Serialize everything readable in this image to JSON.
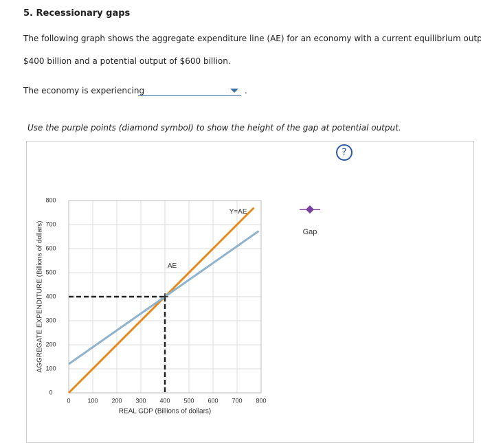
{
  "header": {
    "title": "5. Recessionary gaps"
  },
  "intro": [
    "The following graph shows the aggregate expenditure line (AE) for an economy with a current equilibrium output of",
    "$400 billion and a potential output of $600 billion."
  ],
  "question": {
    "prompt": "The economy is experiencing",
    "end": "."
  },
  "instruction": "Use the purple points (diamond symbol) to show the height of the gap at potential output.",
  "help": "?",
  "chart_data": {
    "type": "line",
    "x_label": "REAL GDP (Billions of dollars)",
    "y_label": "AGGREGATE EXPENDITURE (Billions of dollars)",
    "xlim": [
      0,
      800
    ],
    "ylim": [
      0,
      800
    ],
    "xticks": [
      0,
      100,
      200,
      300,
      400,
      500,
      600,
      700,
      800
    ],
    "yticks": [
      0,
      100,
      200,
      300,
      400,
      500,
      600,
      700,
      800
    ],
    "grid": true,
    "series": [
      {
        "name": "Y=AE",
        "color": "#e8891d",
        "x": [
          0,
          770
        ],
        "values": [
          0,
          770
        ]
      },
      {
        "name": "AE",
        "color": "#8fb3cc",
        "x": [
          0,
          790
        ],
        "values": [
          120,
          673
        ]
      }
    ],
    "guides": {
      "x": 400,
      "y": 400
    },
    "legend": {
      "label": "Gap",
      "color": "#7b3fa0"
    }
  }
}
